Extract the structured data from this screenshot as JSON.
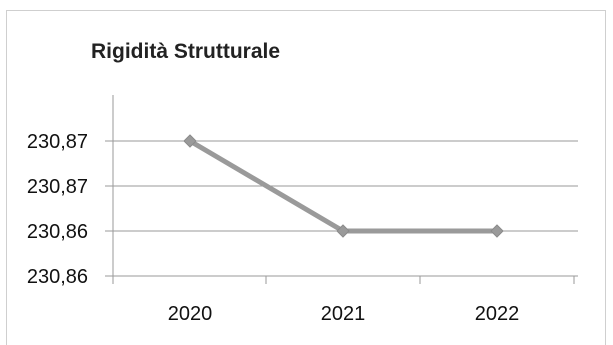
{
  "chart_data": {
    "type": "line",
    "title": "Rigidità Strutturale",
    "xlabel": "",
    "ylabel": "",
    "categories": [
      "2020",
      "2021",
      "2022"
    ],
    "series": [
      {
        "values": [
          230.87,
          230.86,
          230.86
        ],
        "color": "#9a9a9a"
      }
    ],
    "y_tick_labels": [
      "230,87",
      "230,87",
      "230,86",
      "230,86"
    ],
    "grid": true,
    "legend": "none",
    "marker": "diamond"
  }
}
